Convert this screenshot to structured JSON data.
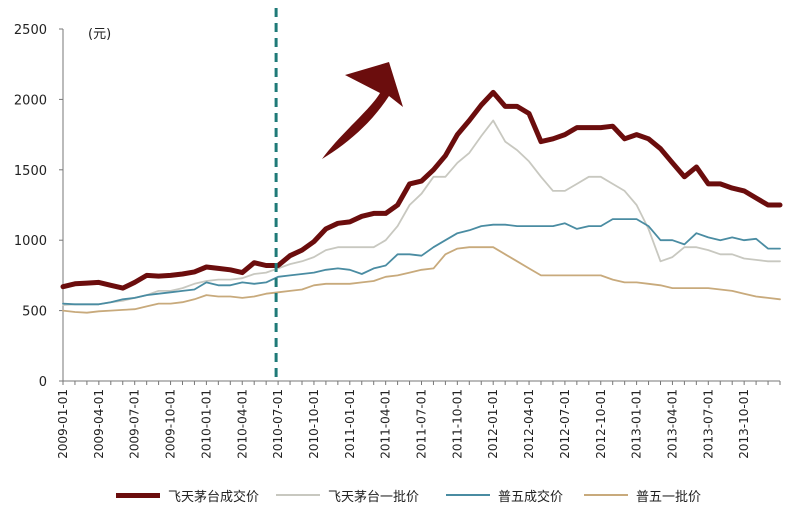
{
  "chart_data": {
    "type": "line",
    "unit_label": "(元)",
    "ylim": [
      0,
      2500
    ],
    "yticks": [
      "0",
      "500",
      "1000",
      "1500",
      "2000",
      "2500"
    ],
    "x_tick_labels": [
      "2009-01-01",
      "2009-04-01",
      "2009-07-01",
      "2009-10-01",
      "2010-01-01",
      "2010-04-01",
      "2010-07-01",
      "2010-10-01",
      "2011-01-01",
      "2011-04-01",
      "2011-07-01",
      "2011-10-01",
      "2012-01-01",
      "2012-04-01",
      "2012-07-01",
      "2012-10-01",
      "2013-01-01",
      "2013-04-01",
      "2013-07-01",
      "2013-10-01"
    ],
    "x": [
      "2009-01",
      "2009-02",
      "2009-03",
      "2009-04",
      "2009-05",
      "2009-06",
      "2009-07",
      "2009-08",
      "2009-09",
      "2009-10",
      "2009-11",
      "2009-12",
      "2010-01",
      "2010-02",
      "2010-03",
      "2010-04",
      "2010-05",
      "2010-06",
      "2010-07",
      "2010-08",
      "2010-09",
      "2010-10",
      "2010-11",
      "2010-12",
      "2011-01",
      "2011-02",
      "2011-03",
      "2011-04",
      "2011-05",
      "2011-06",
      "2011-07",
      "2011-08",
      "2011-09",
      "2011-10",
      "2011-11",
      "2011-12",
      "2012-01",
      "2012-02",
      "2012-03",
      "2012-04",
      "2012-05",
      "2012-06",
      "2012-07",
      "2012-08",
      "2012-09",
      "2012-10",
      "2012-11",
      "2012-12",
      "2013-01",
      "2013-02",
      "2013-03",
      "2013-04",
      "2013-05",
      "2013-06",
      "2013-07",
      "2013-08",
      "2013-09",
      "2013-10",
      "2013-11",
      "2013-12",
      "2014-01"
    ],
    "series": [
      {
        "name": "飞天茅台成交价",
        "color": "#6b0d0d",
        "values": [
          670,
          690,
          695,
          700,
          680,
          660,
          700,
          750,
          745,
          750,
          760,
          775,
          810,
          800,
          790,
          770,
          840,
          820,
          820,
          890,
          930,
          990,
          1080,
          1120,
          1130,
          1170,
          1190,
          1190,
          1250,
          1400,
          1420,
          1500,
          1600,
          1750,
          1850,
          1960,
          2050,
          1950,
          1950,
          1900,
          1700,
          1720,
          1750,
          1800,
          1800,
          1800,
          1810,
          1720,
          1750,
          1720,
          1650,
          1550,
          1450,
          1520,
          1400,
          1400,
          1370,
          1350,
          1300,
          1250,
          1250
        ]
      },
      {
        "name": "飞天茅台一批价",
        "color": "#c8c8c0",
        "values": [
          540,
          545,
          545,
          545,
          560,
          570,
          590,
          610,
          640,
          640,
          660,
          690,
          710,
          720,
          720,
          730,
          760,
          770,
          800,
          830,
          850,
          880,
          930,
          950,
          950,
          950,
          950,
          1000,
          1100,
          1250,
          1330,
          1450,
          1450,
          1550,
          1620,
          1740,
          1850,
          1700,
          1640,
          1560,
          1450,
          1350,
          1350,
          1400,
          1450,
          1450,
          1400,
          1350,
          1250,
          1080,
          850,
          880,
          950,
          950,
          930,
          900,
          900,
          870,
          860,
          850,
          850
        ]
      },
      {
        "name": "普五成交价",
        "color": "#4a8ca2",
        "values": [
          550,
          545,
          545,
          545,
          560,
          580,
          590,
          610,
          620,
          630,
          640,
          650,
          700,
          680,
          680,
          700,
          690,
          700,
          740,
          750,
          760,
          770,
          790,
          800,
          790,
          760,
          800,
          820,
          900,
          900,
          890,
          950,
          1000,
          1050,
          1070,
          1100,
          1110,
          1110,
          1100,
          1100,
          1100,
          1100,
          1120,
          1080,
          1100,
          1100,
          1150,
          1150,
          1150,
          1100,
          1000,
          1000,
          970,
          1050,
          1020,
          1000,
          1020,
          1000,
          1010,
          940,
          940
        ]
      },
      {
        "name": "普五一批价",
        "color": "#c8aa7c",
        "values": [
          500,
          490,
          485,
          495,
          500,
          505,
          510,
          530,
          550,
          550,
          560,
          580,
          610,
          600,
          600,
          590,
          600,
          620,
          630,
          640,
          650,
          680,
          690,
          690,
          690,
          700,
          710,
          740,
          750,
          770,
          790,
          800,
          900,
          940,
          950,
          950,
          950,
          900,
          850,
          800,
          750,
          750,
          750,
          750,
          750,
          750,
          720,
          700,
          700,
          690,
          680,
          660,
          660,
          660,
          660,
          650,
          640,
          620,
          600,
          590,
          580
        ]
      }
    ]
  },
  "legend": [
    {
      "label": "飞天茅台成交价"
    },
    {
      "label": "飞天茅台一批价"
    },
    {
      "label": "普五成交价"
    },
    {
      "label": "普五一批价"
    }
  ],
  "annotations": {
    "divider_date": "2010-07",
    "divider_color": "#1f7a78",
    "arrow_color": "#6b0d0d"
  }
}
